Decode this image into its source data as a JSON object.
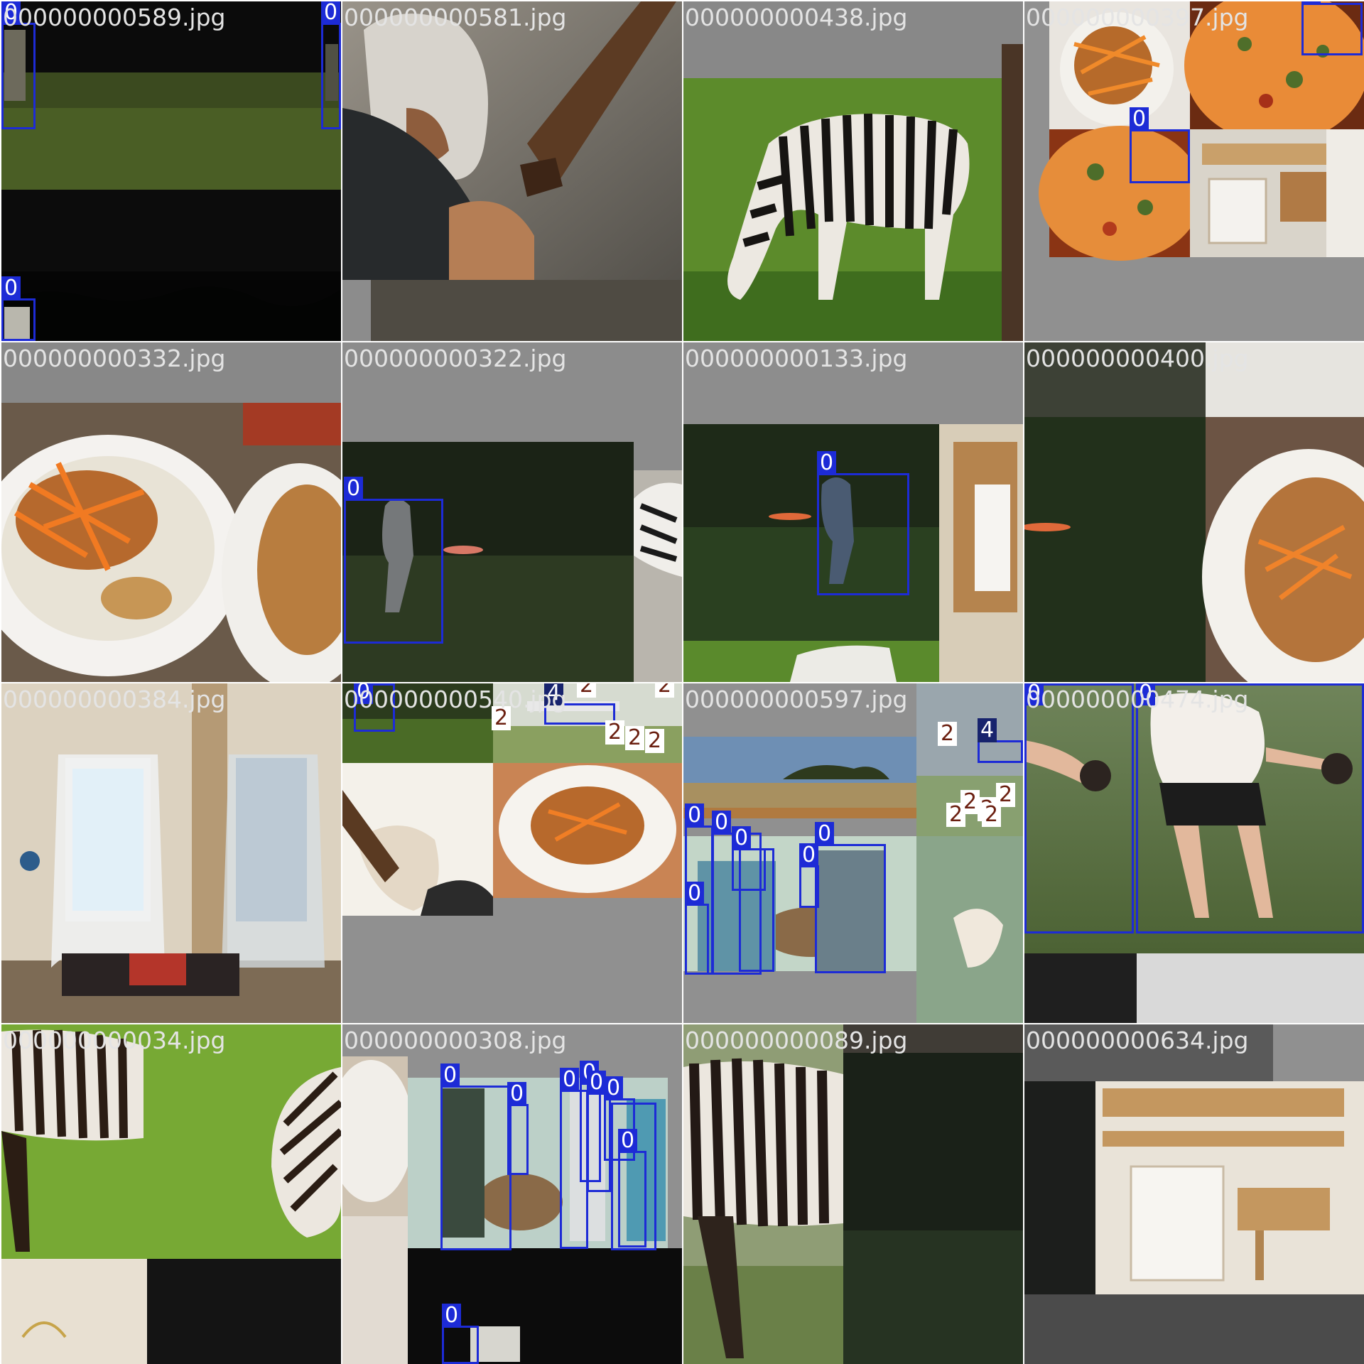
{
  "tiles": [
    {
      "filename": "000000000589.jpg",
      "scene": "night-field",
      "labels": [
        "0",
        "0",
        "0"
      ]
    },
    {
      "filename": "000000000581.jpg",
      "scene": "dog-floor",
      "labels": []
    },
    {
      "filename": "000000000438.jpg",
      "scene": "zebra-grass",
      "labels": []
    },
    {
      "filename": "000000000397.jpg",
      "scene": "pizza-mosaic",
      "labels": [
        "0",
        "0"
      ]
    },
    {
      "filename": "000000000332.jpg",
      "scene": "noodle-bowl",
      "labels": []
    },
    {
      "filename": "000000000322.jpg",
      "scene": "frisbee-dark",
      "labels": [
        "0"
      ]
    },
    {
      "filename": "000000000133.jpg",
      "scene": "frisbee-man",
      "labels": [
        "0"
      ]
    },
    {
      "filename": "000000000400.jpg",
      "scene": "bowl-dark",
      "labels": []
    },
    {
      "filename": "000000000384.jpg",
      "scene": "room-curtains",
      "labels": []
    },
    {
      "filename": "000000000540.jpg",
      "scene": "mixed-airport",
      "labels": [
        "0",
        "4",
        "2",
        "2",
        "2",
        "2",
        "2",
        "2"
      ]
    },
    {
      "filename": "000000000597.jpg",
      "scene": "savanna-wine",
      "labels": [
        "2",
        "4",
        "2",
        "2",
        "2",
        "2",
        "2",
        "0",
        "0",
        "0",
        "0",
        "0",
        "0",
        "0"
      ]
    },
    {
      "filename": "000000000474.jpg",
      "scene": "kids-grass",
      "labels": [
        "0",
        "0"
      ]
    },
    {
      "filename": "000000000034.jpg",
      "scene": "zebra-bright",
      "labels": []
    },
    {
      "filename": "000000000308.jpg",
      "scene": "wine-group",
      "labels": [
        "0",
        "0",
        "0",
        "0",
        "0",
        "0",
        "0",
        "0"
      ]
    },
    {
      "filename": "000000000089.jpg",
      "scene": "zebra-closeup",
      "labels": []
    },
    {
      "filename": "000000000634.jpg",
      "scene": "bunk-bed",
      "labels": []
    }
  ],
  "colors": {
    "box": "#1d2bd6",
    "label_text": "#ffffff",
    "padding_gray": "#909090",
    "filename_text": "#e4e4e4"
  }
}
